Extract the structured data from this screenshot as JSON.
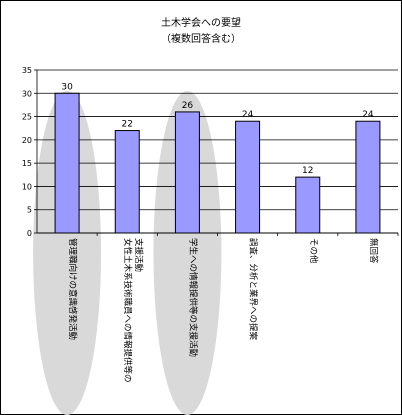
{
  "chart_data": {
    "type": "bar",
    "title": "土木学会への要望",
    "subtitle": "（複数回答含む）",
    "categories": [
      [
        "管理職向けの意識啓発活動"
      ],
      [
        "女性土木系技術職員への情報提供等の",
        "支援活動"
      ],
      [
        "学生への情報提供等の支援活動"
      ],
      [
        "調査、分析と業界への提案"
      ],
      [
        "その他"
      ],
      [
        "無回答"
      ]
    ],
    "values": [
      30,
      22,
      26,
      24,
      12,
      24
    ],
    "highlighted": [
      0,
      2
    ],
    "ylim": [
      0,
      35
    ],
    "yticks": [
      0,
      5,
      10,
      15,
      20,
      25,
      30,
      35
    ],
    "grid": true,
    "xlabel": "",
    "ylabel": "",
    "colors": {
      "bar_fill": "#9999ff",
      "bar_stroke": "#000000",
      "highlight_fill": "#d9d9d9"
    }
  }
}
